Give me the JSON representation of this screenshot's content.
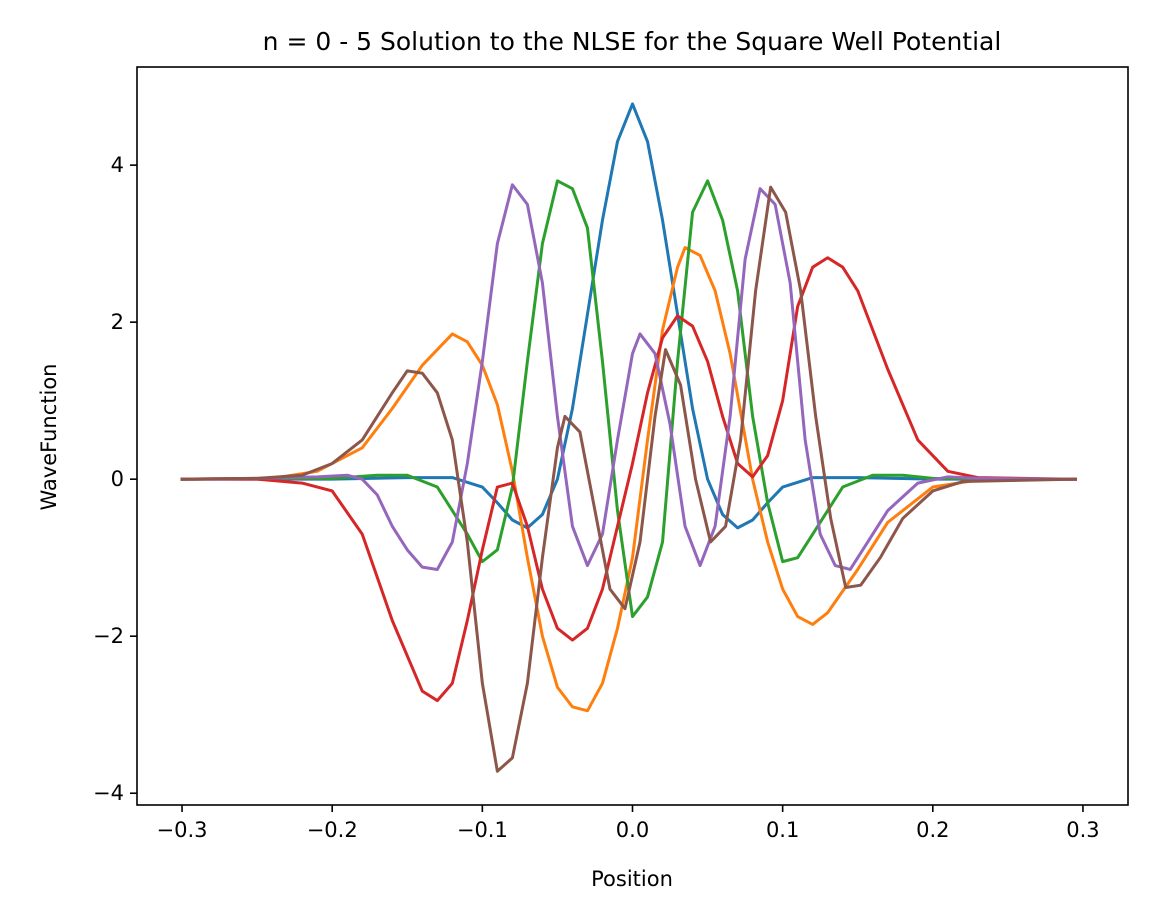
{
  "chart_data": {
    "type": "line",
    "title": "n = 0 - 5 Solution to the NLSE for the Square Well Potential",
    "xlabel": "Position",
    "ylabel": "WaveFunction",
    "xlim": [
      -0.33,
      0.33
    ],
    "ylim": [
      -4.15,
      5.25
    ],
    "x_ticks": [
      -0.3,
      -0.2,
      -0.1,
      0.0,
      0.1,
      0.2,
      0.3
    ],
    "x_tick_labels": [
      "−0.3",
      "−0.2",
      "−0.1",
      "0.0",
      "0.1",
      "0.2",
      "0.3"
    ],
    "y_ticks": [
      -4,
      -2,
      0,
      2,
      4
    ],
    "y_tick_labels": [
      "−4",
      "−2",
      "0",
      "2",
      "4"
    ],
    "grid": false,
    "series": [
      {
        "color": "#1f77b4",
        "points": [
          [
            -0.3,
            0
          ],
          [
            -0.2,
            0
          ],
          [
            -0.15,
            0.02
          ],
          [
            -0.12,
            0.02
          ],
          [
            -0.1,
            -0.1
          ],
          [
            -0.09,
            -0.3
          ],
          [
            -0.08,
            -0.52
          ],
          [
            -0.07,
            -0.62
          ],
          [
            -0.06,
            -0.45
          ],
          [
            -0.05,
            0.0
          ],
          [
            -0.04,
            0.9
          ],
          [
            -0.03,
            2.1
          ],
          [
            -0.02,
            3.3
          ],
          [
            -0.01,
            4.3
          ],
          [
            0.0,
            4.78
          ],
          [
            0.01,
            4.3
          ],
          [
            0.02,
            3.3
          ],
          [
            0.03,
            2.1
          ],
          [
            0.04,
            0.9
          ],
          [
            0.05,
            0.0
          ],
          [
            0.06,
            -0.45
          ],
          [
            0.07,
            -0.62
          ],
          [
            0.08,
            -0.52
          ],
          [
            0.09,
            -0.3
          ],
          [
            0.1,
            -0.1
          ],
          [
            0.12,
            0.02
          ],
          [
            0.15,
            0.02
          ],
          [
            0.2,
            0
          ],
          [
            0.295,
            0
          ]
        ]
      },
      {
        "color": "#ff7f0e",
        "points": [
          [
            -0.3,
            0
          ],
          [
            -0.24,
            0.01
          ],
          [
            -0.21,
            0.1
          ],
          [
            -0.18,
            0.4
          ],
          [
            -0.16,
            0.9
          ],
          [
            -0.14,
            1.45
          ],
          [
            -0.12,
            1.85
          ],
          [
            -0.11,
            1.75
          ],
          [
            -0.1,
            1.45
          ],
          [
            -0.09,
            0.95
          ],
          [
            -0.08,
            0.1
          ],
          [
            -0.07,
            -1.0
          ],
          [
            -0.06,
            -2.0
          ],
          [
            -0.05,
            -2.65
          ],
          [
            -0.04,
            -2.9
          ],
          [
            -0.03,
            -2.95
          ],
          [
            -0.02,
            -2.6
          ],
          [
            -0.01,
            -1.9
          ],
          [
            0.0,
            -1.0
          ],
          [
            0.01,
            0.5
          ],
          [
            0.02,
            1.9
          ],
          [
            0.03,
            2.7
          ],
          [
            0.035,
            2.95
          ],
          [
            0.045,
            2.85
          ],
          [
            0.055,
            2.4
          ],
          [
            0.065,
            1.6
          ],
          [
            0.08,
            0.0
          ],
          [
            0.09,
            -0.8
          ],
          [
            0.1,
            -1.4
          ],
          [
            0.11,
            -1.75
          ],
          [
            0.12,
            -1.85
          ],
          [
            0.13,
            -1.7
          ],
          [
            0.15,
            -1.15
          ],
          [
            0.17,
            -0.55
          ],
          [
            0.2,
            -0.1
          ],
          [
            0.23,
            -0.01
          ],
          [
            0.295,
            0
          ]
        ]
      },
      {
        "color": "#2ca02c",
        "points": [
          [
            -0.3,
            0
          ],
          [
            -0.2,
            0.01
          ],
          [
            -0.17,
            0.05
          ],
          [
            -0.15,
            0.05
          ],
          [
            -0.13,
            -0.1
          ],
          [
            -0.11,
            -0.7
          ],
          [
            -0.1,
            -1.05
          ],
          [
            -0.09,
            -0.9
          ],
          [
            -0.08,
            -0.1
          ],
          [
            -0.07,
            1.5
          ],
          [
            -0.06,
            3.0
          ],
          [
            -0.05,
            3.8
          ],
          [
            -0.04,
            3.7
          ],
          [
            -0.03,
            3.2
          ],
          [
            -0.02,
            1.5
          ],
          [
            -0.01,
            -0.4
          ],
          [
            0.0,
            -1.75
          ],
          [
            0.01,
            -1.5
          ],
          [
            0.02,
            -0.8
          ],
          [
            0.03,
            1.5
          ],
          [
            0.04,
            3.4
          ],
          [
            0.05,
            3.8
          ],
          [
            0.06,
            3.3
          ],
          [
            0.07,
            2.4
          ],
          [
            0.08,
            0.8
          ],
          [
            0.09,
            -0.3
          ],
          [
            0.1,
            -1.05
          ],
          [
            0.11,
            -1.0
          ],
          [
            0.12,
            -0.7
          ],
          [
            0.14,
            -0.1
          ],
          [
            0.16,
            0.05
          ],
          [
            0.18,
            0.05
          ],
          [
            0.2,
            0.01
          ],
          [
            0.295,
            0
          ]
        ]
      },
      {
        "color": "#d62728",
        "points": [
          [
            -0.3,
            0
          ],
          [
            -0.25,
            0
          ],
          [
            -0.22,
            -0.05
          ],
          [
            -0.2,
            -0.15
          ],
          [
            -0.18,
            -0.7
          ],
          [
            -0.16,
            -1.8
          ],
          [
            -0.14,
            -2.7
          ],
          [
            -0.13,
            -2.82
          ],
          [
            -0.12,
            -2.6
          ],
          [
            -0.11,
            -1.8
          ],
          [
            -0.1,
            -0.9
          ],
          [
            -0.09,
            -0.1
          ],
          [
            -0.08,
            -0.05
          ],
          [
            -0.07,
            -0.6
          ],
          [
            -0.06,
            -1.4
          ],
          [
            -0.05,
            -1.9
          ],
          [
            -0.04,
            -2.05
          ],
          [
            -0.03,
            -1.9
          ],
          [
            -0.02,
            -1.4
          ],
          [
            -0.01,
            -0.6
          ],
          [
            0.0,
            0.2
          ],
          [
            0.01,
            1.1
          ],
          [
            0.02,
            1.8
          ],
          [
            0.03,
            2.08
          ],
          [
            0.04,
            1.95
          ],
          [
            0.05,
            1.5
          ],
          [
            0.06,
            0.8
          ],
          [
            0.07,
            0.2
          ],
          [
            0.08,
            0.03
          ],
          [
            0.09,
            0.3
          ],
          [
            0.1,
            1.0
          ],
          [
            0.11,
            2.2
          ],
          [
            0.12,
            2.7
          ],
          [
            0.13,
            2.82
          ],
          [
            0.14,
            2.7
          ],
          [
            0.15,
            2.4
          ],
          [
            0.17,
            1.4
          ],
          [
            0.19,
            0.5
          ],
          [
            0.21,
            0.1
          ],
          [
            0.23,
            0.02
          ],
          [
            0.295,
            0
          ]
        ]
      },
      {
        "color": "#9467bd",
        "points": [
          [
            -0.3,
            0
          ],
          [
            -0.25,
            0.01
          ],
          [
            -0.21,
            0.03
          ],
          [
            -0.19,
            0.05
          ],
          [
            -0.18,
            0.0
          ],
          [
            -0.17,
            -0.2
          ],
          [
            -0.16,
            -0.6
          ],
          [
            -0.15,
            -0.9
          ],
          [
            -0.14,
            -1.12
          ],
          [
            -0.13,
            -1.15
          ],
          [
            -0.12,
            -0.8
          ],
          [
            -0.11,
            0.2
          ],
          [
            -0.1,
            1.5
          ],
          [
            -0.09,
            3.0
          ],
          [
            -0.08,
            3.75
          ],
          [
            -0.07,
            3.5
          ],
          [
            -0.06,
            2.5
          ],
          [
            -0.05,
            0.8
          ],
          [
            -0.04,
            -0.6
          ],
          [
            -0.03,
            -1.1
          ],
          [
            -0.02,
            -0.7
          ],
          [
            -0.01,
            0.5
          ],
          [
            0.0,
            1.6
          ],
          [
            0.005,
            1.85
          ],
          [
            0.015,
            1.6
          ],
          [
            0.025,
            0.7
          ],
          [
            0.035,
            -0.6
          ],
          [
            0.045,
            -1.1
          ],
          [
            0.055,
            -0.6
          ],
          [
            0.065,
            0.8
          ],
          [
            0.075,
            2.8
          ],
          [
            0.085,
            3.7
          ],
          [
            0.095,
            3.5
          ],
          [
            0.105,
            2.5
          ],
          [
            0.115,
            0.5
          ],
          [
            0.125,
            -0.7
          ],
          [
            0.135,
            -1.1
          ],
          [
            0.145,
            -1.15
          ],
          [
            0.155,
            -0.85
          ],
          [
            0.17,
            -0.4
          ],
          [
            0.19,
            -0.05
          ],
          [
            0.21,
            0.03
          ],
          [
            0.23,
            0.01
          ],
          [
            0.295,
            0
          ]
        ]
      },
      {
        "color": "#8c564b",
        "points": [
          [
            -0.3,
            0
          ],
          [
            -0.25,
            0.01
          ],
          [
            -0.22,
            0.05
          ],
          [
            -0.2,
            0.2
          ],
          [
            -0.18,
            0.5
          ],
          [
            -0.16,
            1.1
          ],
          [
            -0.15,
            1.38
          ],
          [
            -0.14,
            1.35
          ],
          [
            -0.13,
            1.1
          ],
          [
            -0.12,
            0.5
          ],
          [
            -0.11,
            -0.8
          ],
          [
            -0.1,
            -2.6
          ],
          [
            -0.09,
            -3.72
          ],
          [
            -0.08,
            -3.55
          ],
          [
            -0.07,
            -2.6
          ],
          [
            -0.06,
            -1.0
          ],
          [
            -0.05,
            0.4
          ],
          [
            -0.045,
            0.8
          ],
          [
            -0.035,
            0.6
          ],
          [
            -0.025,
            -0.4
          ],
          [
            -0.015,
            -1.4
          ],
          [
            -0.005,
            -1.65
          ],
          [
            0.005,
            -0.8
          ],
          [
            0.015,
            0.8
          ],
          [
            0.022,
            1.65
          ],
          [
            0.032,
            1.2
          ],
          [
            0.042,
            0.0
          ],
          [
            0.052,
            -0.8
          ],
          [
            0.062,
            -0.6
          ],
          [
            0.072,
            0.5
          ],
          [
            0.082,
            2.4
          ],
          [
            0.092,
            3.72
          ],
          [
            0.102,
            3.4
          ],
          [
            0.112,
            2.4
          ],
          [
            0.122,
            0.8
          ],
          [
            0.132,
            -0.5
          ],
          [
            0.142,
            -1.38
          ],
          [
            0.152,
            -1.35
          ],
          [
            0.165,
            -1.0
          ],
          [
            0.18,
            -0.5
          ],
          [
            0.2,
            -0.15
          ],
          [
            0.22,
            -0.03
          ],
          [
            0.295,
            0
          ]
        ]
      }
    ]
  }
}
